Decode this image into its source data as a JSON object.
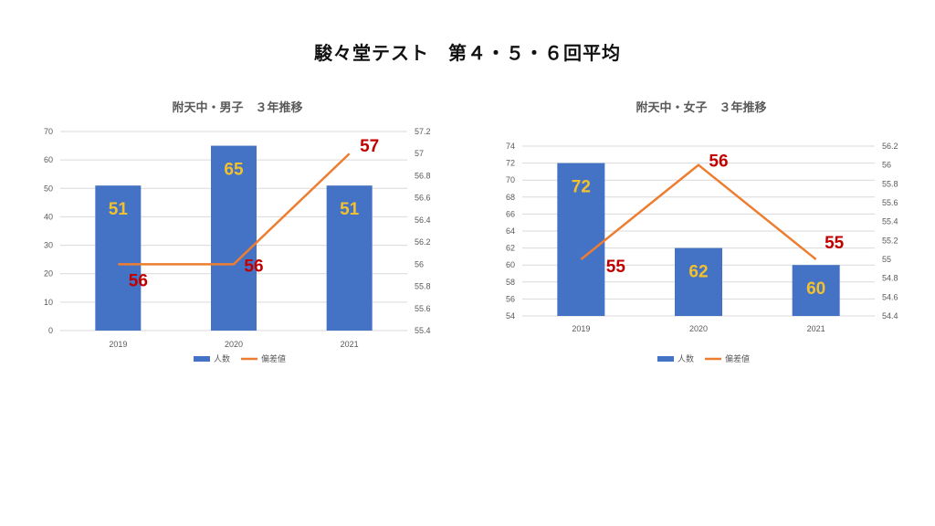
{
  "page": {
    "title": "駿々堂テスト　第４・５・６回平均"
  },
  "chart_data": [
    {
      "type": "bar+line",
      "title": "附天中・男子　３年推移",
      "categories": [
        "2019",
        "2020",
        "2021"
      ],
      "series": [
        {
          "name": "人数",
          "type": "bar",
          "axis": "left",
          "values": [
            51,
            65,
            51
          ],
          "labels": [
            "51",
            "65",
            "51"
          ],
          "color": "#4472c4"
        },
        {
          "name": "偏差値",
          "type": "line",
          "axis": "right",
          "values": [
            56,
            56,
            57
          ],
          "labels": [
            "56",
            "56",
            "57"
          ],
          "color": "#ed7d31"
        }
      ],
      "ylim": [
        0,
        70
      ],
      "yticks": [
        "0",
        "10",
        "20",
        "30",
        "40",
        "50",
        "60",
        "70"
      ],
      "y2lim": [
        55.4,
        57.2
      ],
      "y2ticks": [
        "55.4",
        "55.6",
        "55.8",
        "56",
        "56.2",
        "56.4",
        "56.6",
        "56.8",
        "57",
        "57.2"
      ],
      "grid": true,
      "legend": "bottom"
    },
    {
      "type": "bar+line",
      "title": "附天中・女子　３年推移",
      "categories": [
        "2019",
        "2020",
        "2021"
      ],
      "series": [
        {
          "name": "人数",
          "type": "bar",
          "axis": "left",
          "values": [
            72,
            62,
            60
          ],
          "labels": [
            "72",
            "62",
            "60"
          ],
          "color": "#4472c4"
        },
        {
          "name": "偏差値",
          "type": "line",
          "axis": "right",
          "values": [
            55,
            56,
            55
          ],
          "labels": [
            "55",
            "56",
            "55"
          ],
          "color": "#ed7d31"
        }
      ],
      "ylim": [
        54,
        74
      ],
      "yticks": [
        "54",
        "56",
        "58",
        "60",
        "62",
        "64",
        "66",
        "68",
        "70",
        "72",
        "74"
      ],
      "y2lim": [
        54.4,
        56.2
      ],
      "y2ticks": [
        "54.4",
        "54.6",
        "54.8",
        "55",
        "55.2",
        "55.4",
        "55.6",
        "55.8",
        "56",
        "56.2"
      ],
      "grid": true,
      "legend": "bottom"
    }
  ]
}
